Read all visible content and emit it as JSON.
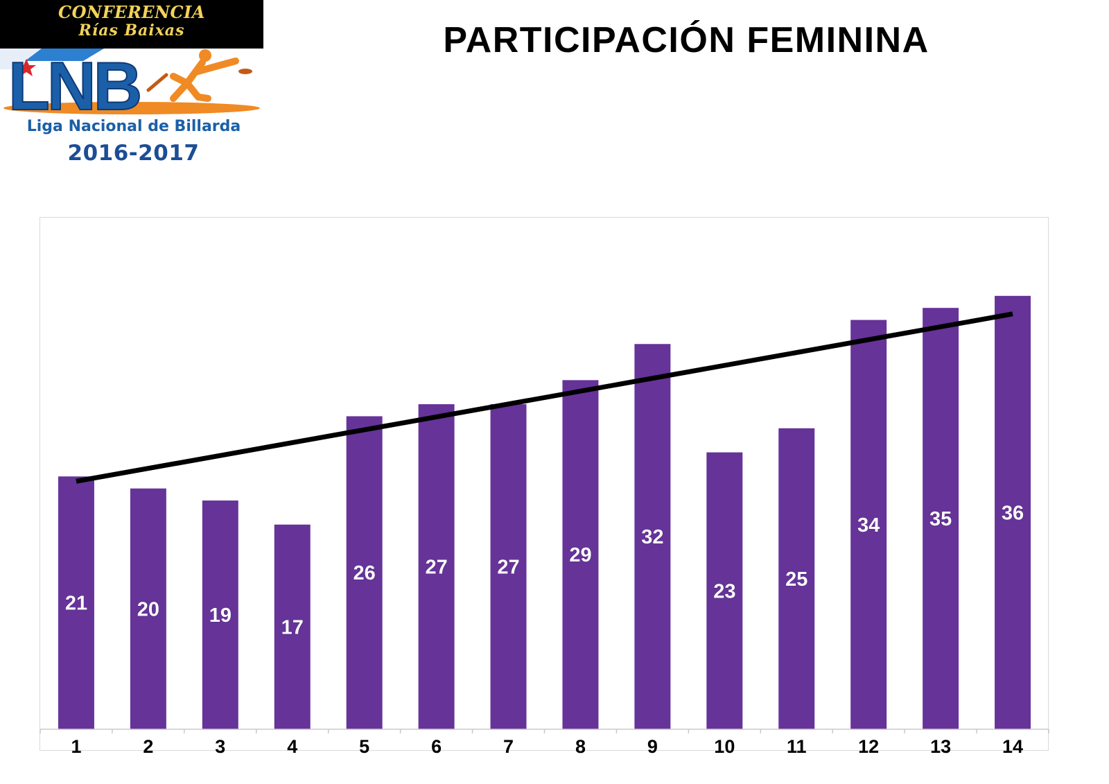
{
  "header": {
    "logo": {
      "banner_line1": "CONFERENCIA",
      "banner_line2": "Rías Baixas",
      "wordmark": "LNB",
      "league_name": "Liga Nacional de Billarda",
      "season": "2016-2017"
    },
    "title": "PARTICIPACIÓN FEMININA"
  },
  "colors": {
    "bar": "#663399",
    "trendline": "#000000",
    "banner_background": "#000000",
    "banner_text": "#f2d25a",
    "logo_blue": "#1b5fa8",
    "logo_orange": "#f08a24"
  },
  "chart_data": {
    "type": "bar",
    "title": "PARTICIPACIÓN FEMININA",
    "categories": [
      "1",
      "2",
      "3",
      "4",
      "5",
      "6",
      "7",
      "8",
      "9",
      "10",
      "11",
      "12",
      "13",
      "14"
    ],
    "values": [
      21,
      20,
      19,
      17,
      26,
      27,
      27,
      29,
      32,
      23,
      25,
      34,
      35,
      36
    ],
    "data_labels": [
      "21",
      "20",
      "19",
      "17",
      "26",
      "27",
      "27",
      "29",
      "32",
      "23",
      "25",
      "34",
      "35",
      "36"
    ],
    "trendline": {
      "type": "linear",
      "from": 20.6,
      "to": 34.5
    },
    "xlabel": "",
    "ylabel": "",
    "ylim": [
      0,
      40
    ],
    "grid": false,
    "legend": "none"
  }
}
